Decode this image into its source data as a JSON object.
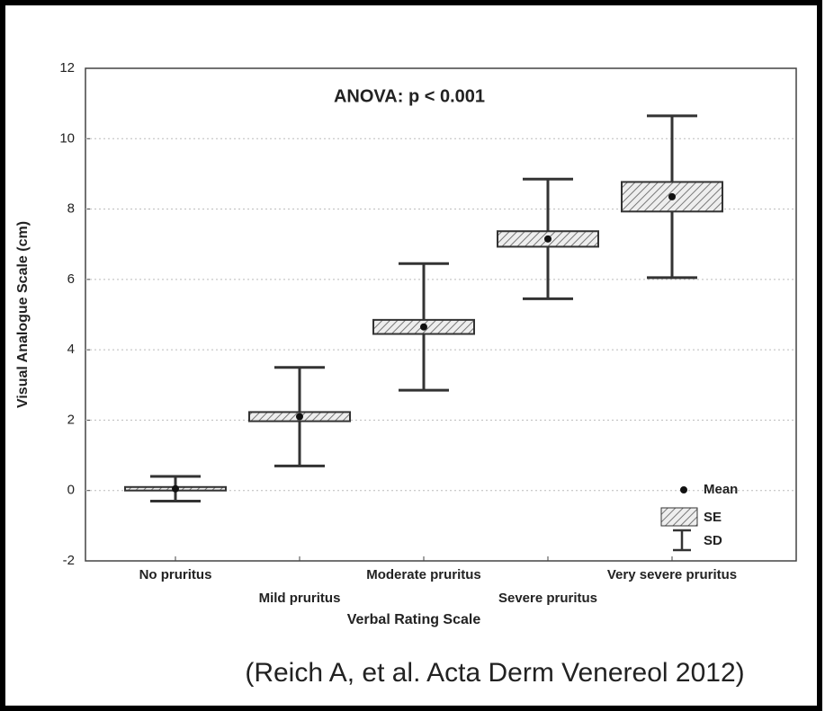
{
  "chart_data": {
    "type": "meanplot",
    "annotation": "ANOVA: p < 0.001",
    "xlabel": "Verbal Rating Scale",
    "ylabel": "Visual Analogue Scale (cm)",
    "caption": "(Reich A, et al. Acta Derm Venereol 2012)",
    "categories": [
      "No pruritus",
      "Mild pruritus",
      "Moderate pruritus",
      "Severe pruritus",
      "Very severe pruritus"
    ],
    "mean": [
      0.05,
      2.1,
      4.65,
      7.15,
      8.35
    ],
    "se": [
      0.05,
      0.13,
      0.2,
      0.22,
      0.42
    ],
    "sd": [
      0.35,
      1.4,
      1.8,
      1.7,
      2.3
    ],
    "legend_labels": {
      "mean": "Mean",
      "se": "SE",
      "sd": "SD"
    },
    "ylim": [
      -2,
      12
    ],
    "yticks": [
      -2,
      0,
      2,
      4,
      6,
      8,
      10,
      12
    ],
    "grid": true
  }
}
